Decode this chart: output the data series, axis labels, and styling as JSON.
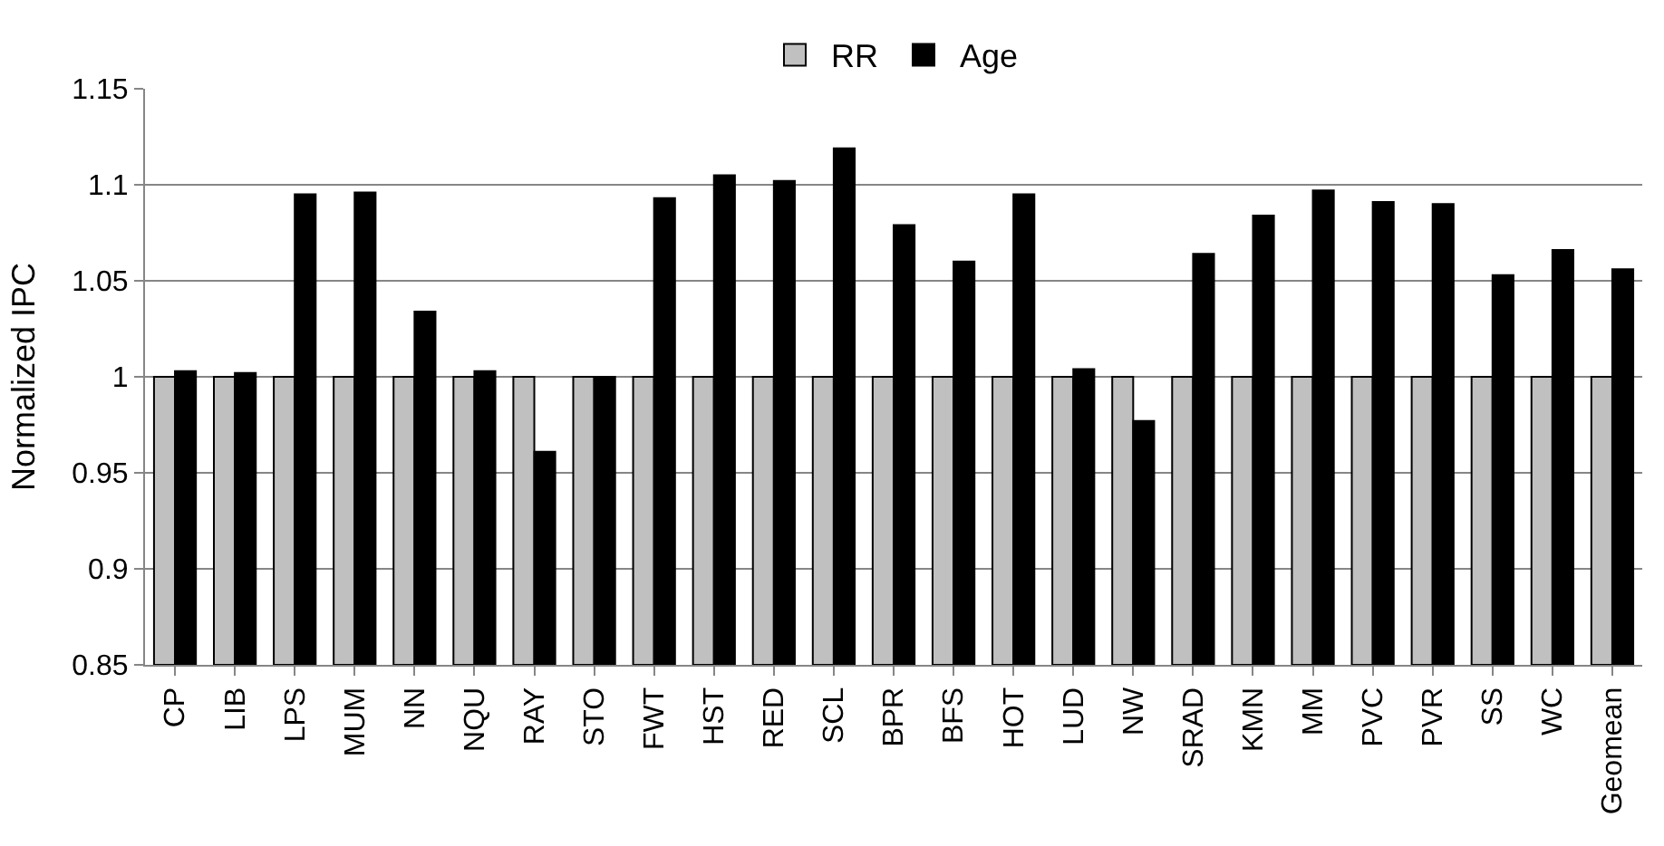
{
  "chart_data": {
    "type": "bar",
    "ylabel": "Normalized IPC",
    "categories": [
      "CP",
      "LIB",
      "LPS",
      "MUM",
      "NN",
      "NQU",
      "RAY",
      "STO",
      "FWT",
      "HST",
      "RED",
      "SCL",
      "BPR",
      "BFS",
      "HOT",
      "LUD",
      "NW",
      "SRAD",
      "KMN",
      "MM",
      "PVC",
      "PVR",
      "SS",
      "WC",
      "Geomean"
    ],
    "series": [
      {
        "name": "RR",
        "color": "#c0c0c0",
        "values": [
          1,
          1,
          1,
          1,
          1,
          1,
          1,
          1,
          1,
          1,
          1,
          1,
          1,
          1,
          1,
          1,
          1,
          1,
          1,
          1,
          1,
          1,
          1,
          1,
          1
        ]
      },
      {
        "name": "Age",
        "color": "#000000",
        "values": [
          1.003,
          1.002,
          1.095,
          1.096,
          1.034,
          1.003,
          0.961,
          1.0,
          1.093,
          1.105,
          1.102,
          1.119,
          1.079,
          1.06,
          1.095,
          1.004,
          0.977,
          1.064,
          1.084,
          1.097,
          1.091,
          1.09,
          1.053,
          1.066,
          1.056
        ]
      }
    ],
    "ylim": [
      0.85,
      1.15
    ],
    "yticks": [
      {
        "value": 0.85,
        "label": "0.85"
      },
      {
        "value": 0.9,
        "label": "0.9"
      },
      {
        "value": 0.95,
        "label": "0.95"
      },
      {
        "value": 1,
        "label": "1"
      },
      {
        "value": 1.05,
        "label": "1.05"
      },
      {
        "value": 1.1,
        "label": "1.1"
      },
      {
        "value": 1.15,
        "label": "1.15"
      }
    ],
    "grid": "y",
    "legend": "top"
  }
}
